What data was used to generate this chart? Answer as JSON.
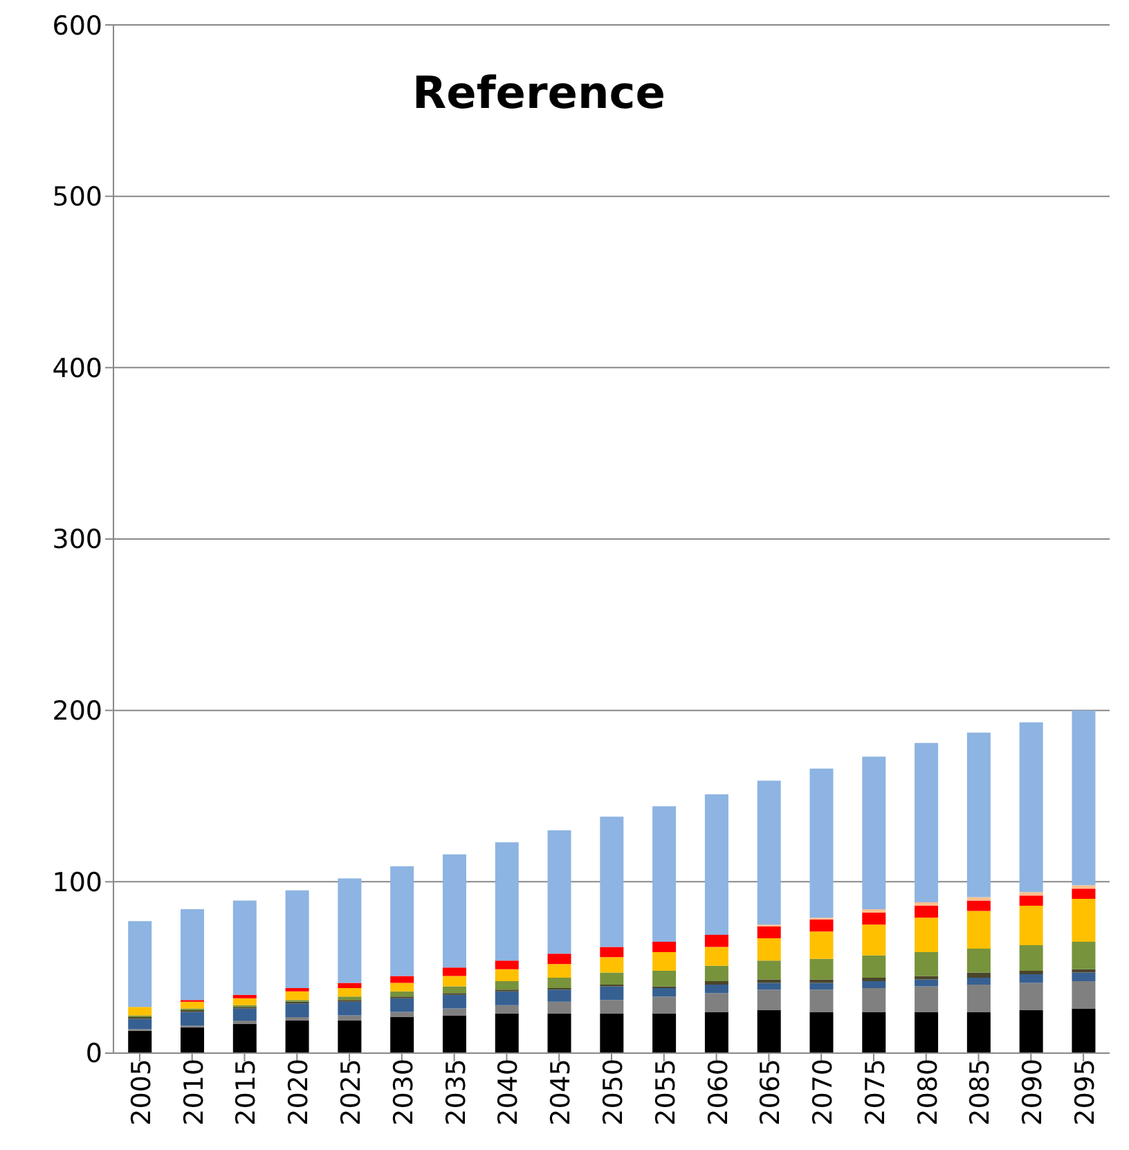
{
  "chart_data": {
    "type": "bar",
    "title": "Reference",
    "stacked": true,
    "categories": [
      "2005",
      "2010",
      "2015",
      "2020",
      "2025",
      "2030",
      "2035",
      "2040",
      "2045",
      "2050",
      "2055",
      "2060",
      "2065",
      "2070",
      "2075",
      "2080",
      "2085",
      "2090",
      "2095"
    ],
    "series": [
      {
        "color": "#000000",
        "values": [
          13,
          15,
          17,
          19,
          19,
          21,
          22,
          23,
          23,
          23,
          23,
          24,
          25,
          24,
          24,
          24,
          24,
          25,
          26
        ]
      },
      {
        "color": "#808080",
        "values": [
          1,
          1,
          2,
          2,
          3,
          3,
          4,
          5,
          7,
          8,
          10,
          11,
          12,
          13,
          14,
          15,
          16,
          16,
          16
        ]
      },
      {
        "color": "#366092",
        "values": [
          6,
          8,
          7,
          8,
          8,
          8,
          8,
          8,
          7,
          8,
          5,
          5,
          4,
          4,
          4,
          4,
          4,
          5,
          5
        ]
      },
      {
        "color": "#4a452a",
        "values": [
          1,
          1,
          1,
          1,
          1,
          1,
          1,
          1,
          1,
          1,
          1,
          2,
          2,
          2,
          2,
          2,
          3,
          2,
          2
        ]
      },
      {
        "color": "#77933c",
        "values": [
          1,
          1,
          1,
          1,
          2,
          3,
          4,
          5,
          6,
          7,
          9,
          9,
          11,
          12,
          13,
          14,
          14,
          15,
          16
        ]
      },
      {
        "color": "#ffc000",
        "values": [
          5,
          4,
          4,
          5,
          5,
          5,
          6,
          7,
          8,
          9,
          11,
          11,
          13,
          16,
          18,
          20,
          22,
          23,
          25
        ]
      },
      {
        "color": "#ff0000",
        "values": [
          0,
          1,
          2,
          2,
          3,
          4,
          5,
          5,
          6,
          6,
          6,
          7,
          7,
          7,
          7,
          7,
          6,
          6,
          6
        ]
      },
      {
        "color": "#fac090",
        "values": [
          0,
          0,
          0,
          0,
          0,
          0,
          0,
          0,
          0,
          0,
          0,
          0,
          1,
          1,
          2,
          2,
          2,
          2,
          2
        ]
      },
      {
        "color": "#8db4e2",
        "values": [
          50,
          53,
          55,
          57,
          61,
          64,
          66,
          69,
          72,
          76,
          79,
          82,
          84,
          87,
          89,
          93,
          96,
          99,
          102
        ]
      }
    ],
    "ylim": [
      0,
      600
    ],
    "yticks": [
      0,
      100,
      200,
      300,
      400,
      500,
      600
    ],
    "grid": "y"
  }
}
